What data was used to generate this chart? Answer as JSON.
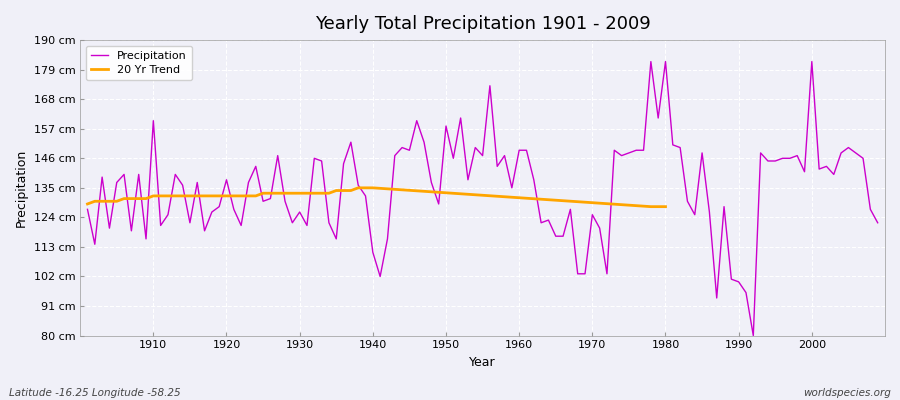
{
  "title": "Yearly Total Precipitation 1901 - 2009",
  "xlabel": "Year",
  "ylabel": "Precipitation",
  "lat_lon_label": "Latitude -16.25 Longitude -58.25",
  "watermark": "worldspecies.org",
  "bg_color": "#f0f0f8",
  "line_color": "#cc00cc",
  "trend_color": "#ffa500",
  "ylim": [
    80,
    190
  ],
  "yticks": [
    80,
    91,
    102,
    113,
    124,
    135,
    146,
    157,
    168,
    179,
    190
  ],
  "ytick_labels": [
    "80 cm",
    "91 cm",
    "102 cm",
    "113 cm",
    "124 cm",
    "135 cm",
    "146 cm",
    "157 cm",
    "168 cm",
    "179 cm",
    "190 cm"
  ],
  "years": [
    1901,
    1902,
    1903,
    1904,
    1905,
    1906,
    1907,
    1908,
    1909,
    1910,
    1911,
    1912,
    1913,
    1914,
    1915,
    1916,
    1917,
    1918,
    1919,
    1920,
    1921,
    1922,
    1923,
    1924,
    1925,
    1926,
    1927,
    1928,
    1929,
    1930,
    1931,
    1932,
    1933,
    1934,
    1935,
    1936,
    1937,
    1938,
    1939,
    1940,
    1941,
    1942,
    1943,
    1944,
    1945,
    1946,
    1947,
    1948,
    1949,
    1950,
    1951,
    1952,
    1953,
    1954,
    1955,
    1956,
    1957,
    1958,
    1959,
    1960,
    1961,
    1962,
    1963,
    1964,
    1965,
    1966,
    1967,
    1968,
    1969,
    1970,
    1971,
    1972,
    1973,
    1974,
    1975,
    1976,
    1977,
    1978,
    1979,
    1980,
    1981,
    1982,
    1983,
    1984,
    1985,
    1986,
    1987,
    1988,
    1989,
    1990,
    1991,
    1992,
    1993,
    1994,
    1995,
    1996,
    1997,
    1998,
    1999,
    2000,
    2001,
    2002,
    2003,
    2004,
    2005,
    2006,
    2007,
    2008,
    2009
  ],
  "precip": [
    127,
    114,
    139,
    120,
    137,
    140,
    119,
    140,
    116,
    160,
    121,
    125,
    140,
    136,
    122,
    137,
    119,
    126,
    128,
    138,
    127,
    121,
    137,
    143,
    130,
    131,
    147,
    130,
    122,
    126,
    121,
    146,
    145,
    122,
    116,
    144,
    152,
    136,
    132,
    111,
    102,
    116,
    147,
    150,
    149,
    160,
    152,
    137,
    129,
    158,
    146,
    161,
    138,
    150,
    147,
    173,
    143,
    147,
    135,
    149,
    149,
    138,
    122,
    123,
    117,
    117,
    127,
    103,
    103,
    125,
    120,
    103,
    149,
    147,
    148,
    149,
    149,
    182,
    161,
    182,
    151,
    150,
    130,
    125,
    148,
    126,
    94,
    128,
    101,
    100,
    96,
    80,
    148,
    145,
    145,
    146,
    146,
    147,
    141,
    182,
    142,
    143,
    140,
    148,
    150,
    148,
    146,
    127,
    122
  ],
  "trend_years": [
    1901,
    1902,
    1903,
    1904,
    1905,
    1906,
    1907,
    1908,
    1909,
    1910,
    1911,
    1912,
    1913,
    1914,
    1915,
    1916,
    1917,
    1918,
    1919,
    1920,
    1921,
    1922,
    1923,
    1924,
    1925,
    1926,
    1927,
    1928,
    1929,
    1930,
    1931,
    1932,
    1933,
    1934,
    1935,
    1936,
    1937,
    1938,
    1939,
    1940,
    1978,
    1979,
    1980
  ],
  "trend_values": [
    129,
    130,
    130,
    130,
    130,
    131,
    131,
    131,
    131,
    132,
    132,
    132,
    132,
    132,
    132,
    132,
    132,
    132,
    132,
    132,
    132,
    132,
    132,
    132,
    133,
    133,
    133,
    133,
    133,
    133,
    133,
    133,
    133,
    133,
    134,
    134,
    134,
    135,
    135,
    135,
    128,
    128,
    128
  ]
}
